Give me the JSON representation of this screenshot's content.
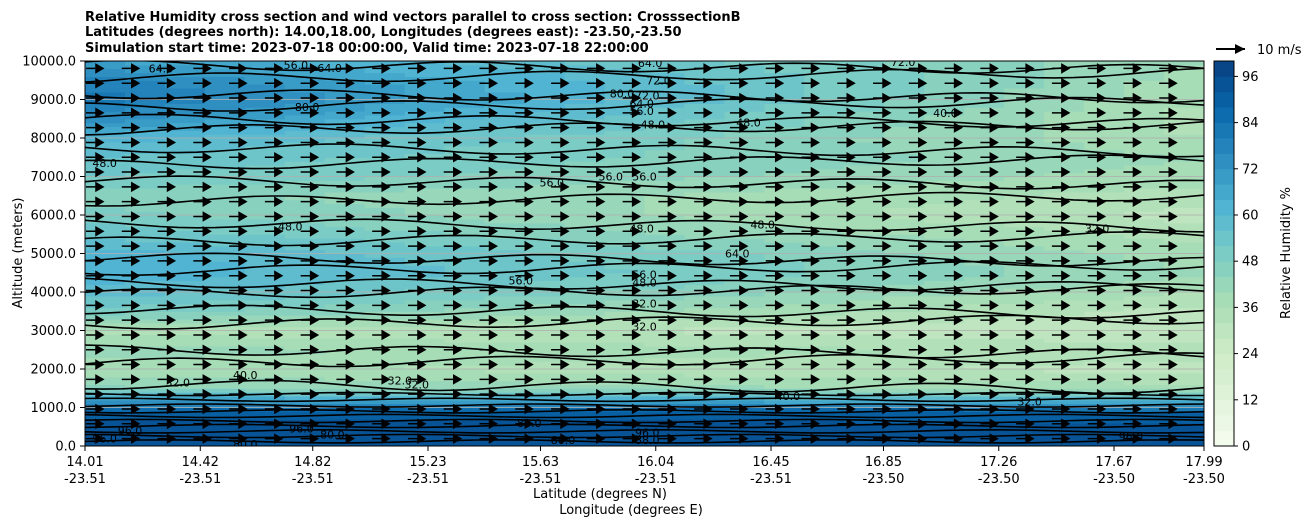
{
  "chart_data": {
    "type": "heatmap",
    "title_lines": [
      "Relative Humidity cross section and wind vectors parallel to cross section: CrosssectionB",
      "Latitudes (degrees north): 14.00,18.00, Longitudes (degrees east): -23.50,-23.50",
      "Simulation start time: 2023-07-18 00:00:00, Valid time: 2023-07-18 22:00:00"
    ],
    "ylabel": "Altitude (meters)",
    "xlabel": "Latitude (degrees N)",
    "xlabel2": "Longitude (degrees E)",
    "ylim": [
      0,
      10000
    ],
    "y_ticks": [
      "0.0",
      "1000.0",
      "2000.0",
      "3000.0",
      "4000.0",
      "5000.0",
      "6000.0",
      "7000.0",
      "8000.0",
      "9000.0",
      "10000.0"
    ],
    "x_ticks": [
      {
        "lat": "14.01",
        "lon": "-23.51"
      },
      {
        "lat": "14.42",
        "lon": "-23.51"
      },
      {
        "lat": "14.82",
        "lon": "-23.51"
      },
      {
        "lat": "15.23",
        "lon": "-23.51"
      },
      {
        "lat": "15.63",
        "lon": "-23.51"
      },
      {
        "lat": "16.04",
        "lon": "-23.51"
      },
      {
        "lat": "16.45",
        "lon": "-23.51"
      },
      {
        "lat": "16.85",
        "lon": "-23.50"
      },
      {
        "lat": "17.26",
        "lon": "-23.50"
      },
      {
        "lat": "17.67",
        "lon": "-23.50"
      },
      {
        "lat": "17.99",
        "lon": "-23.50"
      }
    ],
    "grid": true,
    "colorbar": {
      "label": "Relative Humidity %",
      "range": [
        0,
        100
      ],
      "tick_labels": [
        "0",
        "12",
        "24",
        "36",
        "48",
        "60",
        "72",
        "84",
        "96"
      ],
      "colormap": "GnBu",
      "levels": 25
    },
    "quiver_key": {
      "label": "10 m/s"
    },
    "humidity_profile": {
      "altitude": [
        0,
        500,
        900,
        1200,
        1500,
        2000,
        2500,
        3000,
        3500,
        4000,
        4500,
        5000,
        5500,
        6000,
        6500,
        7000,
        7500,
        8000,
        8500,
        9000,
        9500,
        10000
      ],
      "rh_west": [
        92,
        94,
        90,
        70,
        45,
        38,
        42,
        35,
        50,
        58,
        64,
        62,
        55,
        50,
        46,
        52,
        56,
        62,
        74,
        82,
        78,
        68
      ],
      "rh_east": [
        92,
        94,
        88,
        60,
        38,
        30,
        34,
        28,
        30,
        36,
        40,
        38,
        34,
        30,
        34,
        38,
        40,
        36,
        34,
        36,
        38,
        40
      ]
    },
    "contour_labels": [
      {
        "text": "64.0",
        "lat": 14.28,
        "alt": 9800
      },
      {
        "text": "56.0",
        "lat": 14.76,
        "alt": 9900
      },
      {
        "text": "64.0",
        "lat": 14.88,
        "alt": 9820
      },
      {
        "text": "80.0",
        "lat": 14.8,
        "alt": 8800
      },
      {
        "text": "80.0",
        "lat": 15.92,
        "alt": 9150
      },
      {
        "text": "64.0",
        "lat": 16.02,
        "alt": 9950
      },
      {
        "text": "72.0",
        "lat": 16.05,
        "alt": 9500
      },
      {
        "text": "72.0",
        "lat": 16.01,
        "alt": 9100
      },
      {
        "text": "64.0",
        "lat": 15.99,
        "alt": 8900
      },
      {
        "text": "56.0",
        "lat": 15.99,
        "alt": 8700
      },
      {
        "text": "48.0",
        "lat": 16.03,
        "alt": 8350
      },
      {
        "text": "48.0",
        "lat": 16.37,
        "alt": 8400
      },
      {
        "text": "40.0",
        "lat": 17.07,
        "alt": 8650
      },
      {
        "text": "72.0",
        "lat": 16.92,
        "alt": 9980
      },
      {
        "text": "48.0",
        "lat": 14.08,
        "alt": 7350
      },
      {
        "text": "56.0",
        "lat": 15.67,
        "alt": 6850
      },
      {
        "text": "56.0",
        "lat": 15.88,
        "alt": 7000
      },
      {
        "text": "56.0",
        "lat": 16.0,
        "alt": 7000
      },
      {
        "text": "48.0",
        "lat": 14.74,
        "alt": 5700
      },
      {
        "text": "48.0",
        "lat": 15.99,
        "alt": 5650
      },
      {
        "text": "48.0",
        "lat": 16.42,
        "alt": 5750
      },
      {
        "text": "64.0",
        "lat": 16.33,
        "alt": 5000
      },
      {
        "text": "32.0",
        "lat": 17.61,
        "alt": 5650
      },
      {
        "text": "56.0",
        "lat": 15.56,
        "alt": 4300
      },
      {
        "text": "56.0",
        "lat": 16.0,
        "alt": 4450
      },
      {
        "text": "48.0",
        "lat": 16.0,
        "alt": 4250
      },
      {
        "text": "32.0",
        "lat": 16.0,
        "alt": 3700
      },
      {
        "text": "32.0",
        "lat": 16.0,
        "alt": 3100
      },
      {
        "text": "32.0",
        "lat": 14.34,
        "alt": 1650
      },
      {
        "text": "40.0",
        "lat": 14.58,
        "alt": 1850
      },
      {
        "text": "32.0",
        "lat": 15.13,
        "alt": 1700
      },
      {
        "text": "32.0",
        "lat": 15.19,
        "alt": 1600
      },
      {
        "text": "40.0",
        "lat": 16.51,
        "alt": 1300
      },
      {
        "text": "32.0",
        "lat": 17.37,
        "alt": 1150
      },
      {
        "text": "88.0",
        "lat": 15.59,
        "alt": 600
      },
      {
        "text": "96.0",
        "lat": 16.01,
        "alt": 350
      },
      {
        "text": "88.0",
        "lat": 16.01,
        "alt": 150
      },
      {
        "text": "80.0",
        "lat": 15.71,
        "alt": 150
      },
      {
        "text": "80.0",
        "lat": 14.58,
        "alt": 50
      },
      {
        "text": "80.0",
        "lat": 14.89,
        "alt": 300
      },
      {
        "text": "96.0",
        "lat": 14.17,
        "alt": 400
      },
      {
        "text": "96.0",
        "lat": 14.78,
        "alt": 450
      },
      {
        "text": "96.0",
        "lat": 17.73,
        "alt": 250
      },
      {
        "text": "96.0",
        "lat": 14.08,
        "alt": 200
      }
    ]
  }
}
